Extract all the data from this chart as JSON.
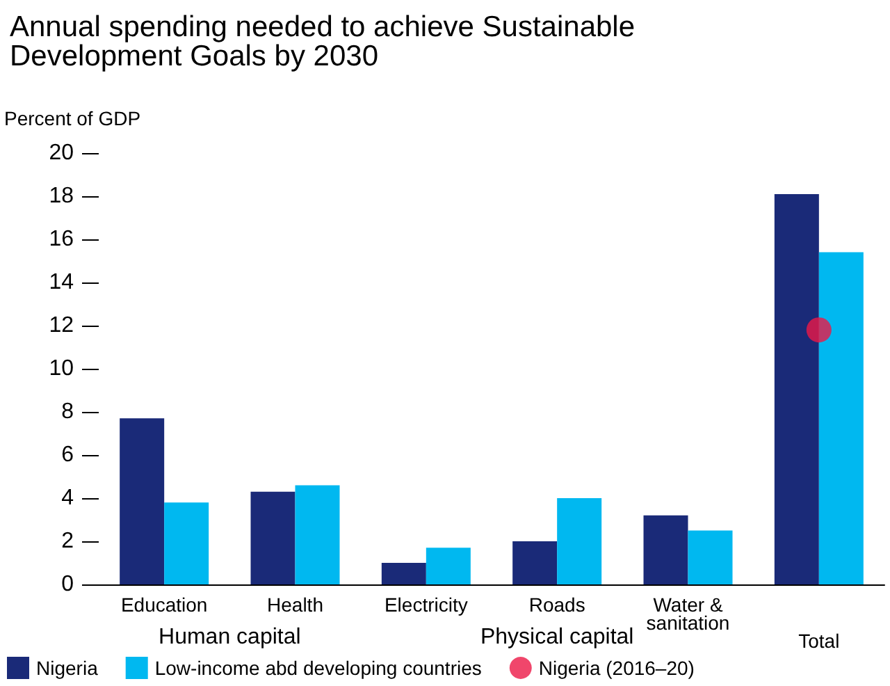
{
  "chart_data": {
    "type": "bar",
    "title": "Annual spending needed to achieve Sustainable Development Goals by 2030",
    "ylabel": "Percent of GDP",
    "categories": [
      "Education",
      "Health",
      "Electricity",
      "Roads",
      "Water &\nsanitation",
      "Total"
    ],
    "annotations": [
      "Human capital",
      "Physical capital"
    ],
    "series": [
      {
        "name": "Nigeria",
        "color": "#1a2a78",
        "values": [
          7.7,
          4.3,
          1.0,
          2.0,
          3.2,
          18.1
        ]
      },
      {
        "name": "Low-income abd developing countries",
        "color": "#00b8f0",
        "values": [
          3.8,
          4.6,
          1.7,
          4.0,
          2.5,
          15.4
        ]
      },
      {
        "name": "Nigeria (2016–20)",
        "type": "scatter",
        "color": "#ec1846",
        "x": [
          "Total"
        ],
        "values": [
          11.8
        ]
      }
    ],
    "ylim": [
      0,
      20
    ],
    "yticks": [
      0,
      2,
      4,
      6,
      8,
      10,
      12,
      14,
      16,
      18,
      20
    ],
    "grid": false,
    "legend": "bottom",
    "marker": "circle"
  }
}
